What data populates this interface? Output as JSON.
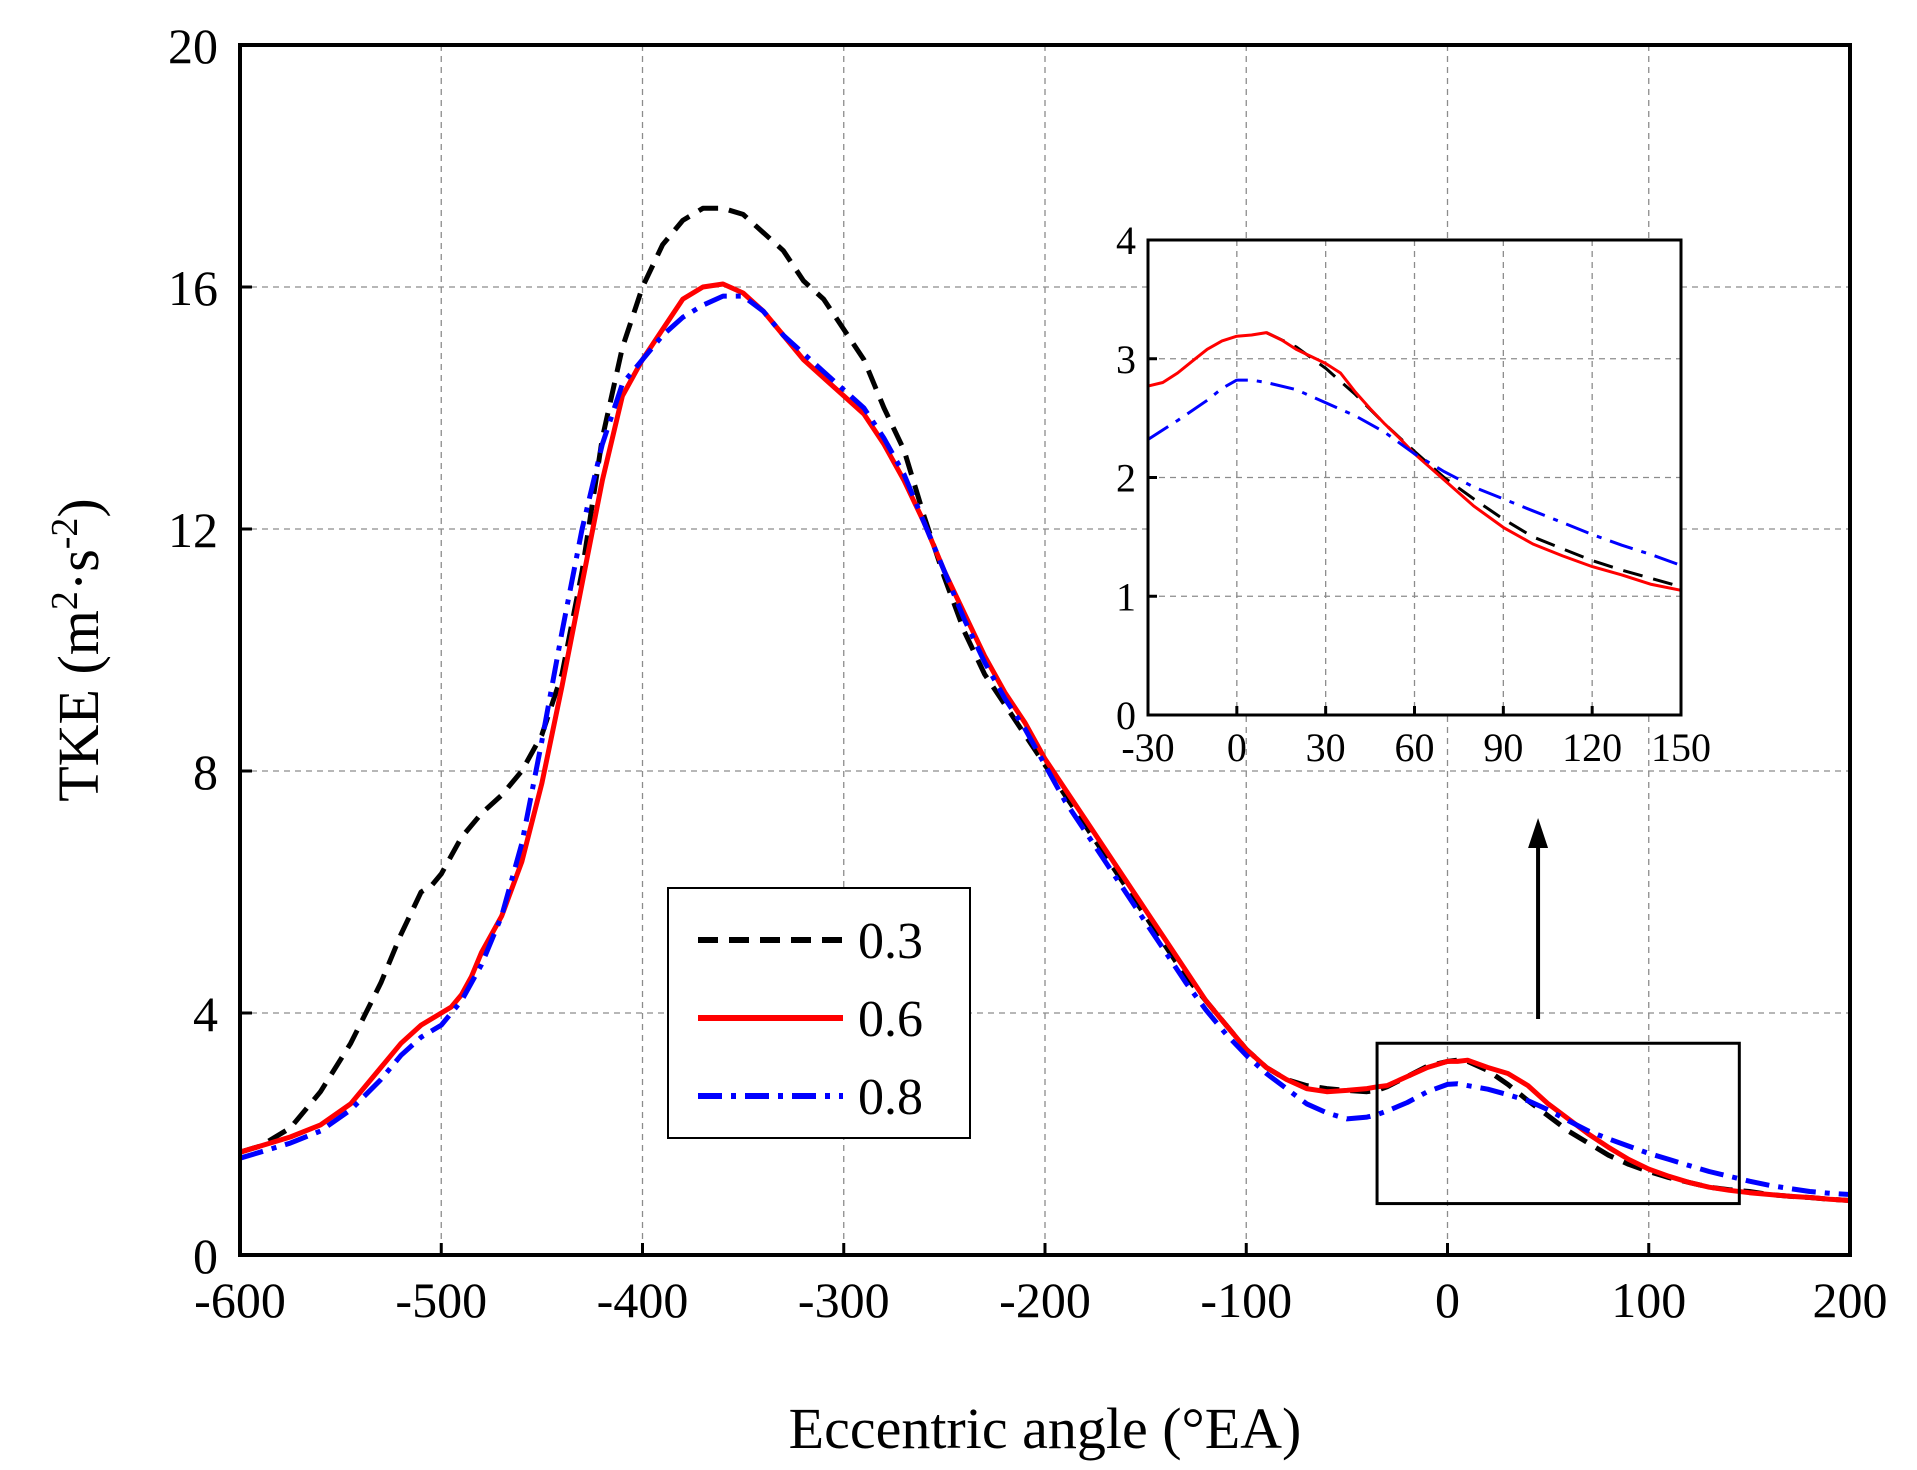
{
  "chart_data": [
    {
      "type": "line",
      "title": "",
      "xlabel": "Eccentric angle (°EA)",
      "ylabel": "TKE (m",
      "ylabel_sup1": "2",
      "ylabel_mid": "·s",
      "ylabel_sup2": "-2",
      "ylabel_end": ")",
      "xlim": [
        -600,
        200
      ],
      "ylim": [
        0,
        20
      ],
      "xticks": [
        -600,
        -500,
        -400,
        -300,
        -200,
        -100,
        0,
        100,
        200
      ],
      "yticks": [
        0,
        4,
        8,
        12,
        16,
        20
      ],
      "grid": true,
      "legend_position": "center-bottom",
      "series": [
        {
          "name": "0.3",
          "color": "#000000",
          "dash": "dashed",
          "x": [
            -600,
            -590,
            -575,
            -560,
            -545,
            -530,
            -520,
            -510,
            -505,
            -500,
            -495,
            -490,
            -480,
            -470,
            -460,
            -450,
            -440,
            -430,
            -420,
            -410,
            -400,
            -390,
            -380,
            -370,
            -360,
            -350,
            -340,
            -330,
            -320,
            -310,
            -300,
            -290,
            -280,
            -270,
            -260,
            -250,
            -240,
            -230,
            -220,
            -210,
            -200,
            -190,
            -180,
            -170,
            -160,
            -150,
            -140,
            -130,
            -120,
            -110,
            -100,
            -90,
            -80,
            -70,
            -60,
            -50,
            -40,
            -35,
            -30,
            -20,
            -10,
            0,
            5,
            10,
            20,
            30,
            40,
            50,
            60,
            70,
            80,
            90,
            100,
            110,
            120,
            130,
            140,
            150,
            160,
            170,
            180,
            190,
            200
          ],
          "y": [
            1.7,
            1.8,
            2.1,
            2.7,
            3.5,
            4.5,
            5.3,
            6.0,
            6.1,
            6.3,
            6.6,
            6.9,
            7.3,
            7.6,
            8.0,
            8.6,
            9.6,
            11.3,
            13.5,
            15.0,
            16.0,
            16.7,
            17.1,
            17.3,
            17.3,
            17.2,
            16.9,
            16.6,
            16.1,
            15.8,
            15.3,
            14.8,
            14.0,
            13.3,
            12.2,
            11.2,
            10.3,
            9.6,
            9.1,
            8.6,
            8.1,
            7.6,
            7.1,
            6.6,
            6.1,
            5.6,
            5.1,
            4.6,
            4.2,
            3.8,
            3.4,
            3.1,
            2.9,
            2.8,
            2.75,
            2.72,
            2.7,
            2.72,
            2.78,
            2.95,
            3.12,
            3.2,
            3.22,
            3.2,
            3.05,
            2.82,
            2.55,
            2.3,
            2.05,
            1.85,
            1.65,
            1.5,
            1.38,
            1.28,
            1.2,
            1.12,
            1.08,
            1.05,
            1.0,
            0.97,
            0.95,
            0.92,
            0.9
          ]
        },
        {
          "name": "0.6",
          "color": "#ff0000",
          "dash": "solid",
          "x": [
            -600,
            -590,
            -575,
            -560,
            -545,
            -530,
            -520,
            -510,
            -500,
            -495,
            -490,
            -485,
            -480,
            -470,
            -460,
            -450,
            -440,
            -430,
            -420,
            -410,
            -400,
            -390,
            -380,
            -370,
            -360,
            -350,
            -340,
            -330,
            -320,
            -310,
            -300,
            -290,
            -280,
            -270,
            -260,
            -250,
            -240,
            -230,
            -220,
            -210,
            -200,
            -190,
            -180,
            -170,
            -160,
            -150,
            -140,
            -130,
            -120,
            -110,
            -100,
            -90,
            -80,
            -70,
            -60,
            -50,
            -40,
            -35,
            -30,
            -20,
            -10,
            0,
            5,
            10,
            20,
            30,
            40,
            50,
            60,
            70,
            80,
            90,
            100,
            110,
            120,
            130,
            140,
            150,
            160,
            170,
            180,
            190,
            200
          ],
          "y": [
            1.7,
            1.8,
            1.95,
            2.15,
            2.5,
            3.1,
            3.5,
            3.8,
            4.0,
            4.1,
            4.3,
            4.6,
            5.0,
            5.6,
            6.5,
            7.8,
            9.4,
            11.1,
            12.8,
            14.2,
            14.8,
            15.3,
            15.8,
            16.0,
            16.05,
            15.9,
            15.6,
            15.2,
            14.8,
            14.5,
            14.2,
            13.9,
            13.4,
            12.8,
            12.1,
            11.3,
            10.6,
            9.9,
            9.3,
            8.8,
            8.2,
            7.7,
            7.2,
            6.7,
            6.2,
            5.7,
            5.2,
            4.7,
            4.2,
            3.8,
            3.4,
            3.1,
            2.9,
            2.75,
            2.7,
            2.72,
            2.75,
            2.78,
            2.8,
            2.95,
            3.1,
            3.2,
            3.2,
            3.22,
            3.1,
            3.0,
            2.8,
            2.5,
            2.25,
            2.0,
            1.78,
            1.58,
            1.42,
            1.3,
            1.2,
            1.12,
            1.07,
            1.03,
            1.0,
            0.97,
            0.95,
            0.92,
            0.9
          ]
        },
        {
          "name": "0.8",
          "color": "#0000ff",
          "dash": "dashdot",
          "x": [
            -600,
            -590,
            -575,
            -560,
            -545,
            -530,
            -520,
            -510,
            -500,
            -490,
            -480,
            -470,
            -460,
            -450,
            -440,
            -430,
            -420,
            -410,
            -400,
            -390,
            -380,
            -370,
            -360,
            -350,
            -340,
            -330,
            -320,
            -310,
            -300,
            -290,
            -280,
            -270,
            -260,
            -250,
            -240,
            -230,
            -220,
            -210,
            -200,
            -190,
            -180,
            -170,
            -160,
            -150,
            -140,
            -130,
            -120,
            -110,
            -100,
            -90,
            -80,
            -70,
            -60,
            -50,
            -40,
            -35,
            -30,
            -20,
            -10,
            0,
            5,
            10,
            20,
            30,
            40,
            50,
            60,
            70,
            80,
            90,
            100,
            110,
            120,
            130,
            140,
            150,
            160,
            170,
            180,
            190,
            200
          ],
          "y": [
            1.6,
            1.7,
            1.85,
            2.05,
            2.4,
            2.9,
            3.3,
            3.6,
            3.8,
            4.2,
            4.8,
            5.6,
            6.8,
            8.5,
            10.3,
            12.0,
            13.4,
            14.4,
            14.8,
            15.2,
            15.5,
            15.7,
            15.85,
            15.85,
            15.6,
            15.2,
            14.9,
            14.6,
            14.3,
            14.0,
            13.5,
            12.9,
            12.1,
            11.3,
            10.5,
            9.8,
            9.2,
            8.7,
            8.1,
            7.5,
            7.0,
            6.5,
            6.0,
            5.5,
            5.0,
            4.5,
            4.05,
            3.65,
            3.3,
            3.0,
            2.75,
            2.5,
            2.35,
            2.25,
            2.28,
            2.32,
            2.38,
            2.52,
            2.7,
            2.82,
            2.83,
            2.8,
            2.74,
            2.65,
            2.55,
            2.4,
            2.22,
            2.05,
            1.92,
            1.8,
            1.68,
            1.58,
            1.48,
            1.38,
            1.3,
            1.22,
            1.15,
            1.1,
            1.05,
            1.02,
            1.0
          ]
        }
      ],
      "annotation": "rectangle around x from -35 to 150, y from 0.9 to 3.5, arrow pointing up to inset"
    },
    {
      "type": "line",
      "title": "",
      "xlabel": "",
      "ylabel": "",
      "xlim": [
        -30,
        150
      ],
      "ylim": [
        0,
        4
      ],
      "xticks": [
        -30,
        0,
        30,
        60,
        90,
        120,
        150
      ],
      "yticks": [
        0,
        1,
        2,
        3,
        4
      ],
      "grid": true,
      "series": [
        {
          "name": "0.3",
          "color": "#000000",
          "dash": "dashed",
          "x": [
            10,
            20,
            30,
            40,
            50,
            60,
            70,
            80,
            90,
            100,
            110,
            120,
            130,
            140,
            150
          ],
          "y": [
            3.22,
            3.1,
            2.92,
            2.7,
            2.45,
            2.22,
            2.0,
            1.82,
            1.65,
            1.5,
            1.4,
            1.3,
            1.22,
            1.15,
            1.08
          ]
        },
        {
          "name": "0.6",
          "color": "#ff0000",
          "dash": "solid",
          "x": [
            -30,
            -25,
            -20,
            -15,
            -10,
            -5,
            0,
            5,
            10,
            15,
            20,
            25,
            30,
            35,
            40,
            45,
            50,
            55,
            60,
            70,
            80,
            90,
            100,
            110,
            120,
            130,
            140,
            150
          ],
          "y": [
            2.77,
            2.8,
            2.88,
            2.98,
            3.08,
            3.15,
            3.19,
            3.2,
            3.22,
            3.16,
            3.08,
            3.02,
            2.96,
            2.88,
            2.72,
            2.58,
            2.45,
            2.33,
            2.2,
            1.98,
            1.76,
            1.58,
            1.44,
            1.34,
            1.25,
            1.18,
            1.1,
            1.05
          ]
        },
        {
          "name": "0.8",
          "color": "#0000ff",
          "dash": "dashdot",
          "x": [
            -30,
            -20,
            -10,
            -5,
            0,
            5,
            10,
            20,
            30,
            40,
            50,
            60,
            70,
            80,
            90,
            100,
            110,
            120,
            130,
            140,
            150
          ],
          "y": [
            2.32,
            2.48,
            2.65,
            2.75,
            2.82,
            2.82,
            2.8,
            2.74,
            2.63,
            2.52,
            2.38,
            2.2,
            2.05,
            1.92,
            1.82,
            1.72,
            1.62,
            1.52,
            1.43,
            1.35,
            1.26
          ]
        }
      ]
    }
  ]
}
